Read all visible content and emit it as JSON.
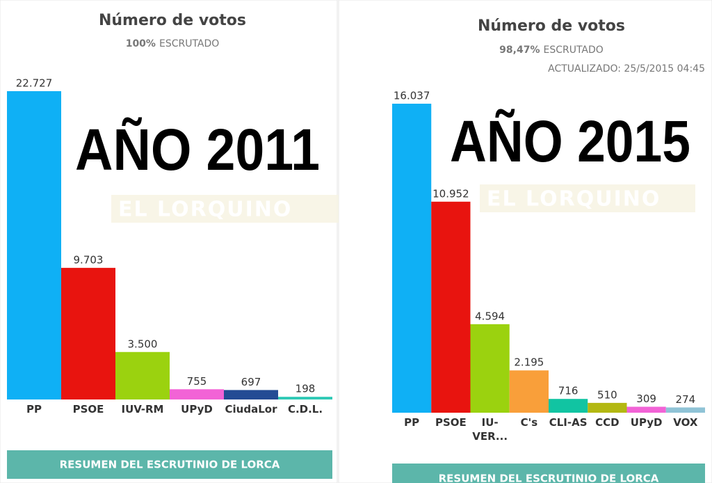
{
  "chart_data": [
    {
      "type": "bar",
      "title": "Número de votos",
      "subtitle_value": "100%",
      "subtitle": "ESCRUTADO",
      "overlay": "AÑO 2011",
      "watermark": "EL LORQUINO",
      "button": "RESUMEN DEL ESCRUTINIO DE LORCA",
      "categories": [
        "PP",
        "PSOE",
        "IUV-RM",
        "UPyD",
        "CiudaLor",
        "C.D.L."
      ],
      "values": [
        22727,
        9703,
        3500,
        755,
        697,
        198
      ],
      "value_labels": [
        "22.727",
        "9.703",
        "3.500",
        "755",
        "697",
        "198"
      ],
      "colors": [
        "#0fb0f5",
        "#e8140f",
        "#9bd20f",
        "#f263d6",
        "#234b94",
        "#2ec9b5"
      ]
    },
    {
      "type": "bar",
      "title": "Número de votos",
      "subtitle_value": "98,47%",
      "subtitle": "ESCRUTADO",
      "updated": "ACTUALIZADO: 25/5/2015 04:45",
      "overlay": "AÑO 2015",
      "watermark": "EL LORQUINO",
      "button": "RESUMEN DEL ESCRUTINIO DE LORCA",
      "categories": [
        "PP",
        "PSOE",
        "IU-VER...",
        "C's",
        "CLI-AS",
        "CCD",
        "UPyD",
        "VOX"
      ],
      "values": [
        16037,
        10952,
        4594,
        2195,
        716,
        510,
        309,
        274
      ],
      "value_labels": [
        "16.037",
        "10.952",
        "4.594",
        "2.195",
        "716",
        "510",
        "309",
        "274"
      ],
      "colors": [
        "#0fb0f5",
        "#e8140f",
        "#9bd20f",
        "#f99f3a",
        "#11c4a2",
        "#b3b812",
        "#f263d6",
        "#8fc3d6"
      ]
    }
  ]
}
